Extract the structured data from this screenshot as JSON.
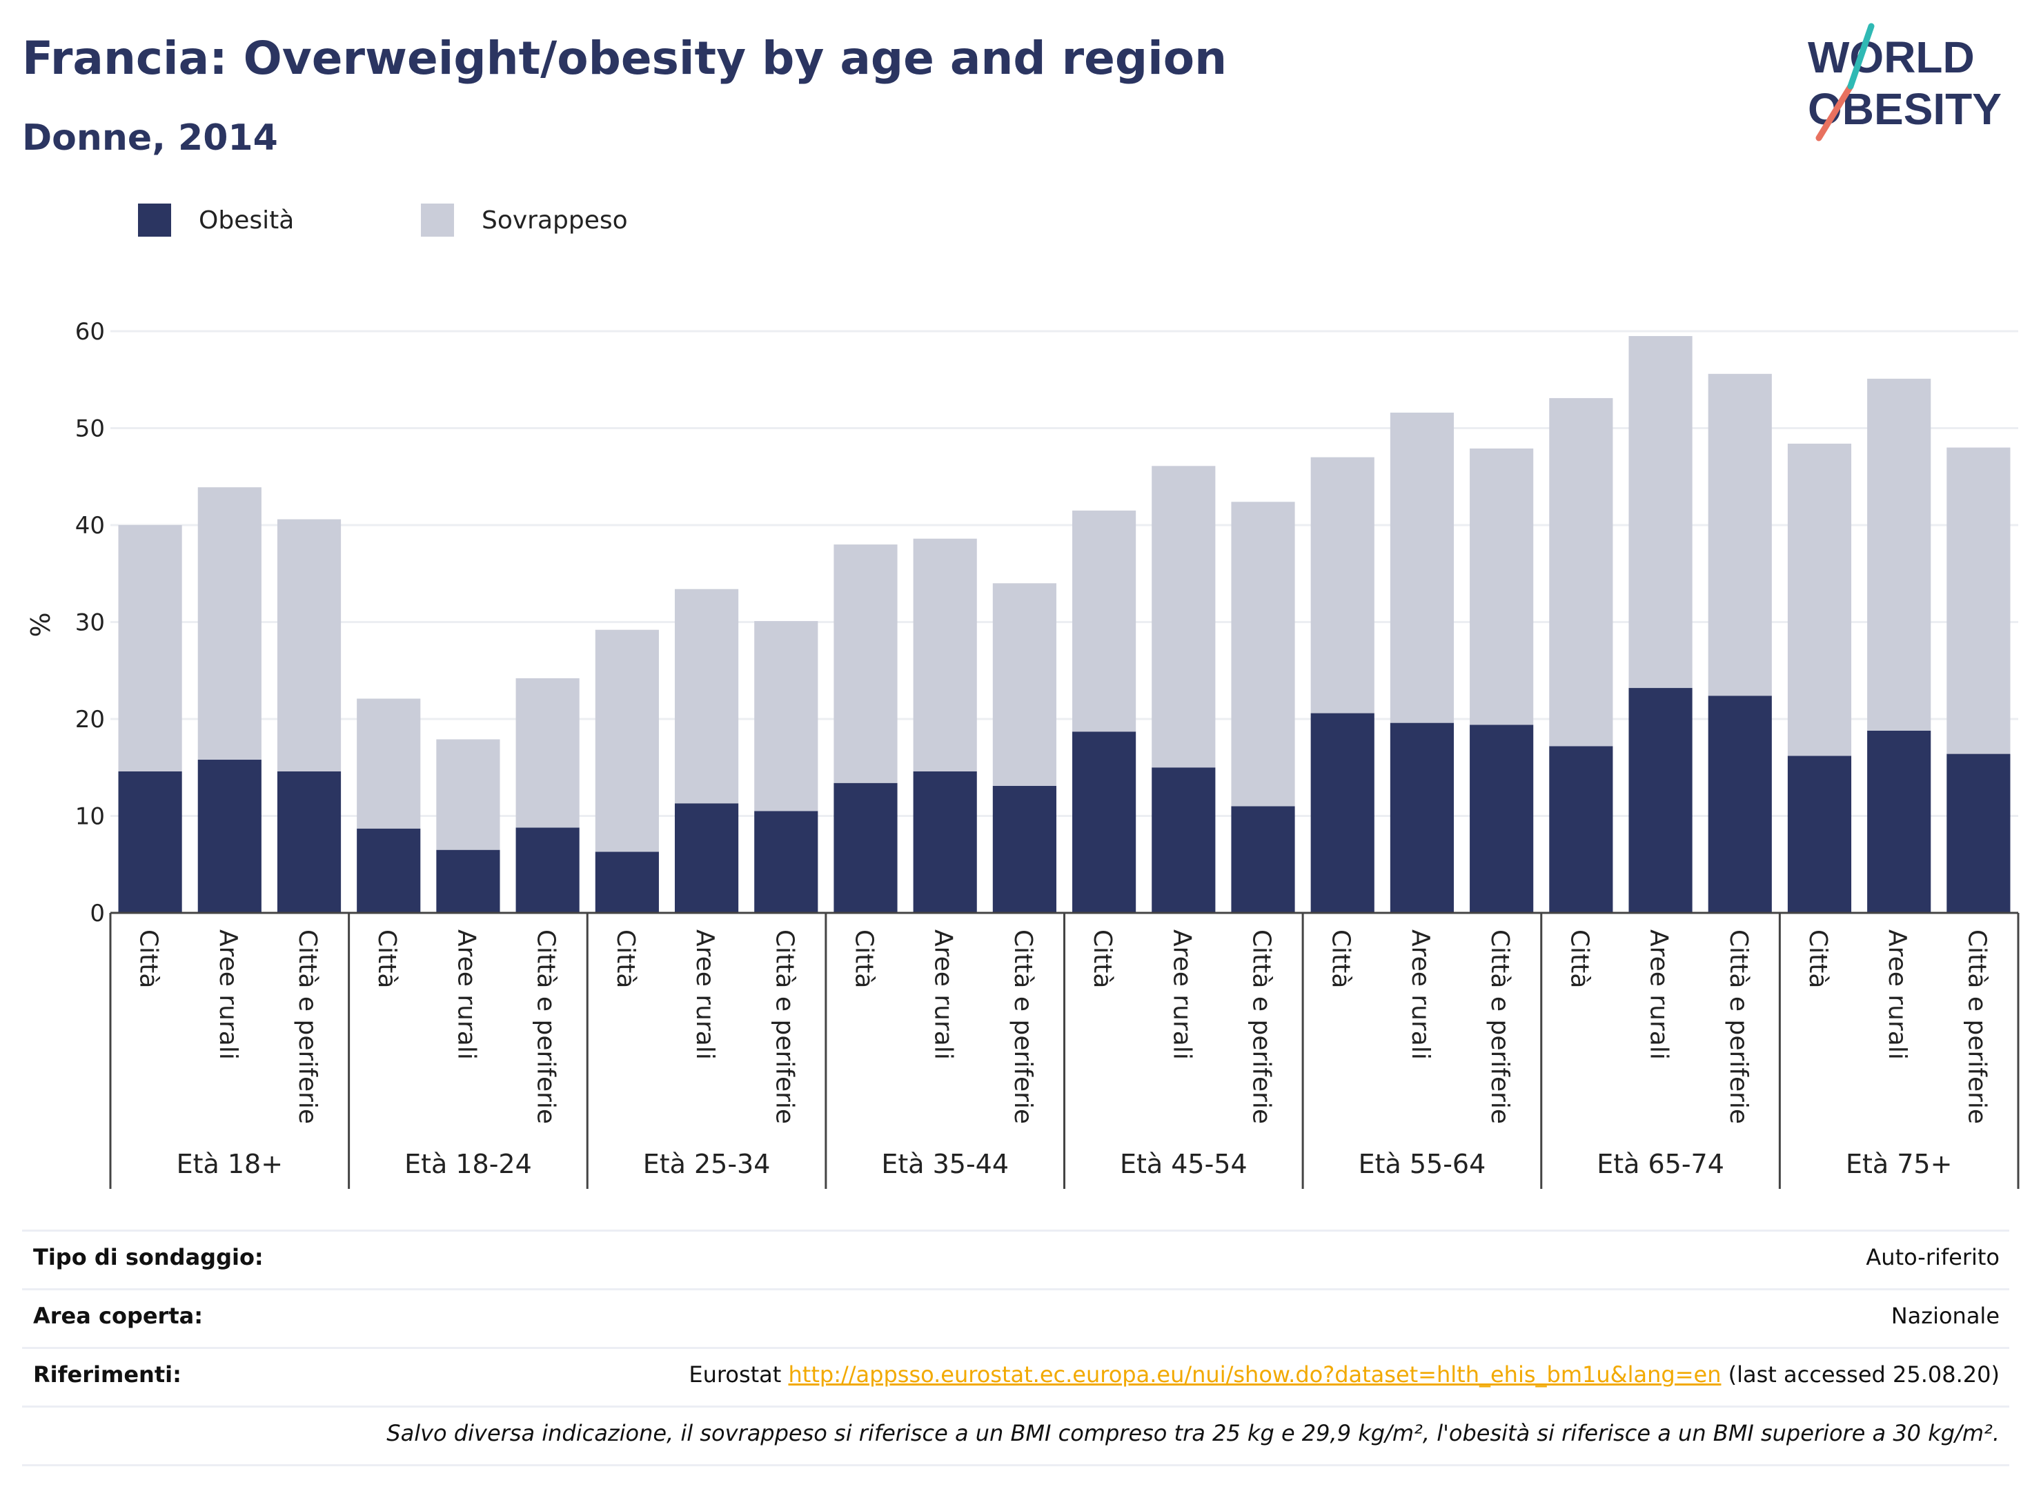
{
  "header": {
    "title": "Francia: Overweight/obesity by age and region",
    "subtitle": "Donne, 2014"
  },
  "logo": {
    "line1": "WORLD",
    "line2": "OBESITY"
  },
  "legend": [
    {
      "label": "Obesità",
      "color": "#2b3561"
    },
    {
      "label": "Sovrappeso",
      "color": "#cacdd9"
    }
  ],
  "chart_data": {
    "type": "bar",
    "stacked": true,
    "ylabel": "%",
    "ylim": [
      0,
      60
    ],
    "yticks": [
      0,
      10,
      20,
      30,
      40,
      50,
      60
    ],
    "grid": true,
    "legend_position": "top-left",
    "groups": [
      "Età 18+",
      "Età 18-24",
      "Età 25-34",
      "Età 35-44",
      "Età 45-54",
      "Età 55-64",
      "Età 65-74",
      "Età 75+"
    ],
    "subcategories": [
      "Città",
      "Aree rurali",
      "Città e periferie"
    ],
    "series": [
      {
        "name": "Obesità",
        "color": "#2b3561",
        "values": [
          14.6,
          15.8,
          14.6,
          8.7,
          6.5,
          8.8,
          6.3,
          11.3,
          10.5,
          13.4,
          14.6,
          13.1,
          18.7,
          15.0,
          11.0,
          20.6,
          19.6,
          19.4,
          17.2,
          23.2,
          22.4,
          16.2,
          18.8,
          16.4
        ]
      },
      {
        "name": "Sovrappeso",
        "color": "#cacdd9",
        "values": [
          25.4,
          28.1,
          26.0,
          13.4,
          11.4,
          15.4,
          22.9,
          22.1,
          19.6,
          24.6,
          24.0,
          20.9,
          22.8,
          31.1,
          31.4,
          26.4,
          32.0,
          28.5,
          35.9,
          36.3,
          33.2,
          32.2,
          36.3,
          31.6
        ]
      }
    ]
  },
  "info": {
    "survey_label": "Tipo di sondaggio:",
    "survey_value": "Auto-riferito",
    "area_label": "Area coperta:",
    "area_value": "Nazionale",
    "refs_label": "Riferimenti:",
    "refs_prefix": "Eurostat",
    "refs_link": "http://appsso.eurostat.ec.europa.eu/nui/show.do?dataset=hlth_ehis_bm1u&lang=en",
    "refs_suffix": "(last accessed 25.08.20)",
    "note": "Salvo diversa indicazione, il sovrappeso si riferisce a un BMI compreso tra 25 kg e 29,9 kg/m², l'obesità si riferisce a un BMI superiore a 30 kg/m²."
  }
}
